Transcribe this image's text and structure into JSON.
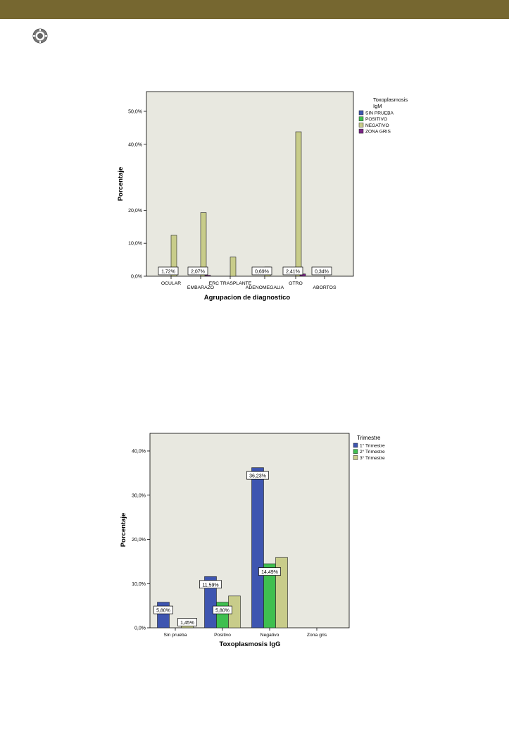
{
  "colors": {
    "header_band": "#766730",
    "plot_background": "#e8e8e0",
    "sin_prueba": "#3e55b0",
    "positivo": "#3fbf4f",
    "negativo": "#c8cc8a",
    "zona_gris": "#7a2585",
    "primer_trimestre": "#3e55b0",
    "segundo_trimestre": "#3fbf4f",
    "tercer_trimestre": "#c8cc8a"
  },
  "icons": {
    "logo": "gear-emblem-icon"
  },
  "chart_data": [
    {
      "type": "bar",
      "xlabel": "Agrupacion de diagnostico",
      "ylabel": "Porcentaje",
      "ylim": [
        0,
        55
      ],
      "yticks": [
        "0,0%",
        "10,0%",
        "20,0%",
        "40,0%",
        "50,0%"
      ],
      "ytick_values": [
        0,
        10,
        20,
        40,
        50
      ],
      "categories": [
        "OCULAR",
        "EMBARAZO",
        "ERC TRASPLANTE",
        "ADENOMEGALIA",
        "OTRO",
        "ABORTOS"
      ],
      "legend_title": "Toxoplasmosis IgM",
      "legend_position": "right",
      "series": [
        {
          "name": "SIN PRUEBA",
          "values": [
            0,
            0,
            0,
            0,
            0,
            0
          ]
        },
        {
          "name": "POSITIVO",
          "values": [
            0,
            0,
            0,
            0,
            0,
            0
          ]
        },
        {
          "name": "NEGATIVO",
          "values": [
            12.4,
            19.3,
            5.8,
            2.8,
            43.8,
            0
          ]
        },
        {
          "name": "ZONA GRIS",
          "values": [
            0,
            0.3,
            0,
            0,
            0.69,
            0
          ]
        }
      ],
      "data_labels": [
        "1,72%",
        "2,07%",
        "",
        "0,69%",
        "2,41%",
        "0,34%"
      ],
      "grid": false
    },
    {
      "type": "bar",
      "xlabel": "Toxoplasmosis IgG",
      "ylabel": "Porcentaje",
      "ylim": [
        0,
        42
      ],
      "yticks": [
        "0,0%",
        "10,0%",
        "20,0%",
        "30,0%",
        "40,0%"
      ],
      "ytick_values": [
        0,
        10,
        20,
        30,
        40
      ],
      "categories": [
        "Sin prueba",
        "Positivo",
        "Negativo",
        "Zona gris"
      ],
      "legend_title": "Trimestre",
      "legend_position": "right",
      "series": [
        {
          "name": "1° Trimestre",
          "values": [
            5.8,
            11.59,
            36.23,
            0
          ]
        },
        {
          "name": "2° Trimestre",
          "values": [
            0,
            5.8,
            14.49,
            0
          ]
        },
        {
          "name": "3° Trimestre",
          "values": [
            1.45,
            7.2,
            15.9,
            0
          ]
        }
      ],
      "data_labels": [
        {
          "series": 0,
          "category": 0,
          "text": "5,80%"
        },
        {
          "series": 2,
          "category": 0,
          "text": "1,45%"
        },
        {
          "series": 0,
          "category": 1,
          "text": "11,59%"
        },
        {
          "series": 1,
          "category": 1,
          "text": "5,80%"
        },
        {
          "series": 0,
          "category": 2,
          "text": "36,23%"
        },
        {
          "series": 1,
          "category": 2,
          "text": "14,49%"
        }
      ],
      "grid": false
    }
  ]
}
